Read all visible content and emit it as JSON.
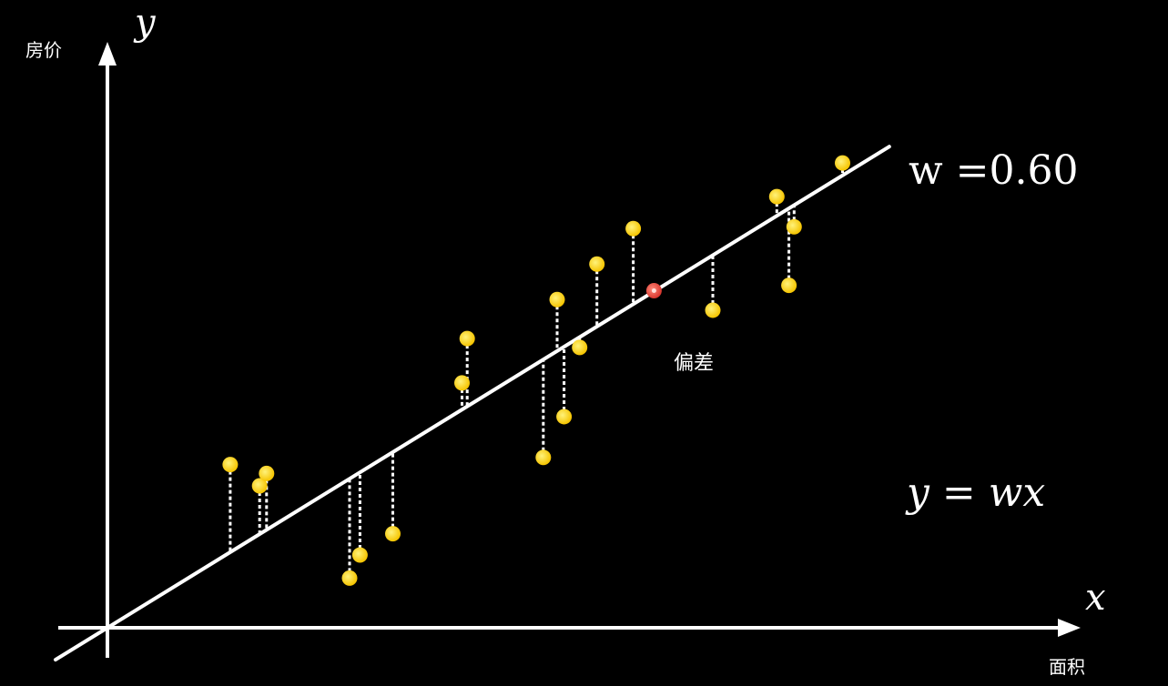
{
  "colors": {
    "background": "#000000",
    "axis": "#ffffff",
    "fit_line": "#ffffff",
    "point": "#ffd21f",
    "point_highlight": "#e8504a",
    "residual": "#ffffff"
  },
  "labels": {
    "y_symbol": "y",
    "y_name": "房价",
    "x_symbol": "x",
    "x_name": "面积",
    "weight_text": "w =0.60",
    "equation_text": "y = wx",
    "residual_label": "偏差"
  },
  "chart_data": {
    "type": "scatter",
    "title": "",
    "xlabel": "面积",
    "ylabel": "房价",
    "model": "y = wx",
    "w": 0.6,
    "xlim": [
      -3,
      60
    ],
    "ylim": [
      -1.5,
      34
    ],
    "grid": false,
    "residuals_shown": true,
    "points": [
      {
        "x": 7.1,
        "y": 9.2
      },
      {
        "x": 8.8,
        "y": 8.0
      },
      {
        "x": 9.2,
        "y": 8.7
      },
      {
        "x": 14.0,
        "y": 2.8
      },
      {
        "x": 14.6,
        "y": 4.1
      },
      {
        "x": 16.5,
        "y": 5.3
      },
      {
        "x": 20.5,
        "y": 13.8
      },
      {
        "x": 20.8,
        "y": 16.3
      },
      {
        "x": 25.2,
        "y": 9.6
      },
      {
        "x": 26.0,
        "y": 18.5
      },
      {
        "x": 26.4,
        "y": 11.9
      },
      {
        "x": 27.3,
        "y": 15.8
      },
      {
        "x": 28.3,
        "y": 20.5
      },
      {
        "x": 30.4,
        "y": 22.5
      },
      {
        "x": 31.6,
        "y": 19.0,
        "highlight": true
      },
      {
        "x": 35.0,
        "y": 17.9
      },
      {
        "x": 38.7,
        "y": 24.3
      },
      {
        "x": 39.4,
        "y": 19.3
      },
      {
        "x": 39.7,
        "y": 22.6
      },
      {
        "x": 42.5,
        "y": 26.2
      }
    ]
  }
}
